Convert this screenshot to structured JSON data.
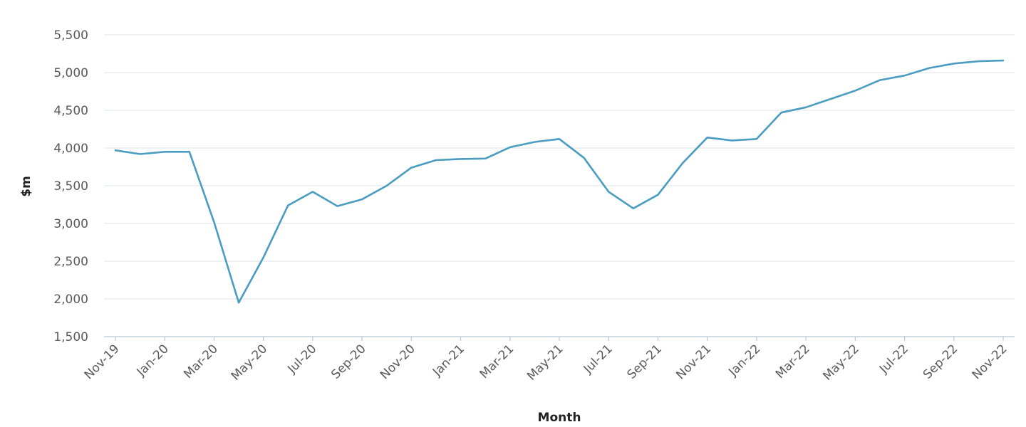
{
  "chart_data": {
    "type": "line",
    "title": "",
    "xlabel": "Month",
    "ylabel": "$m",
    "ylim": [
      1500,
      5500
    ],
    "yticks": [
      1500,
      2000,
      2500,
      3000,
      3500,
      4000,
      4500,
      5000,
      5500
    ],
    "ytick_labels": [
      "1,500",
      "2,000",
      "2,500",
      "3,000",
      "3,500",
      "4,000",
      "4,500",
      "5,000",
      "5,500"
    ],
    "grid": true,
    "legend": "none",
    "x": [
      "Nov-19",
      "Dec-19",
      "Jan-20",
      "Feb-20",
      "Mar-20",
      "Apr-20",
      "May-20",
      "Jun-20",
      "Jul-20",
      "Aug-20",
      "Sep-20",
      "Oct-20",
      "Nov-20",
      "Dec-20",
      "Jan-21",
      "Feb-21",
      "Mar-21",
      "Apr-21",
      "May-21",
      "Jun-21",
      "Jul-21",
      "Aug-21",
      "Sep-21",
      "Oct-21",
      "Nov-21",
      "Dec-21",
      "Jan-22",
      "Feb-22",
      "Mar-22",
      "Apr-22",
      "May-22",
      "Jun-22",
      "Jul-22",
      "Aug-22",
      "Sep-22",
      "Oct-22",
      "Nov-22"
    ],
    "xtick_labels": [
      "Nov-19",
      "Jan-20",
      "Mar-20",
      "May-20",
      "Jul-20",
      "Sep-20",
      "Nov-20",
      "Jan-21",
      "Mar-21",
      "May-21",
      "Jul-21",
      "Sep-21",
      "Nov-21",
      "Jan-22",
      "Mar-22",
      "May-22",
      "Jul-22",
      "Sep-22",
      "Nov-22"
    ],
    "series": [
      {
        "color": "#4a9cc0",
        "values": [
          3970,
          3920,
          3950,
          3950,
          3020,
          1950,
          2550,
          3240,
          3420,
          3230,
          3320,
          3500,
          3740,
          3840,
          3855,
          3860,
          4010,
          4080,
          4120,
          3870,
          3420,
          3200,
          3380,
          3800,
          4140,
          4100,
          4120,
          4470,
          4540,
          4650,
          4760,
          4900,
          4960,
          5060,
          5120,
          5150,
          5160
        ]
      }
    ]
  }
}
